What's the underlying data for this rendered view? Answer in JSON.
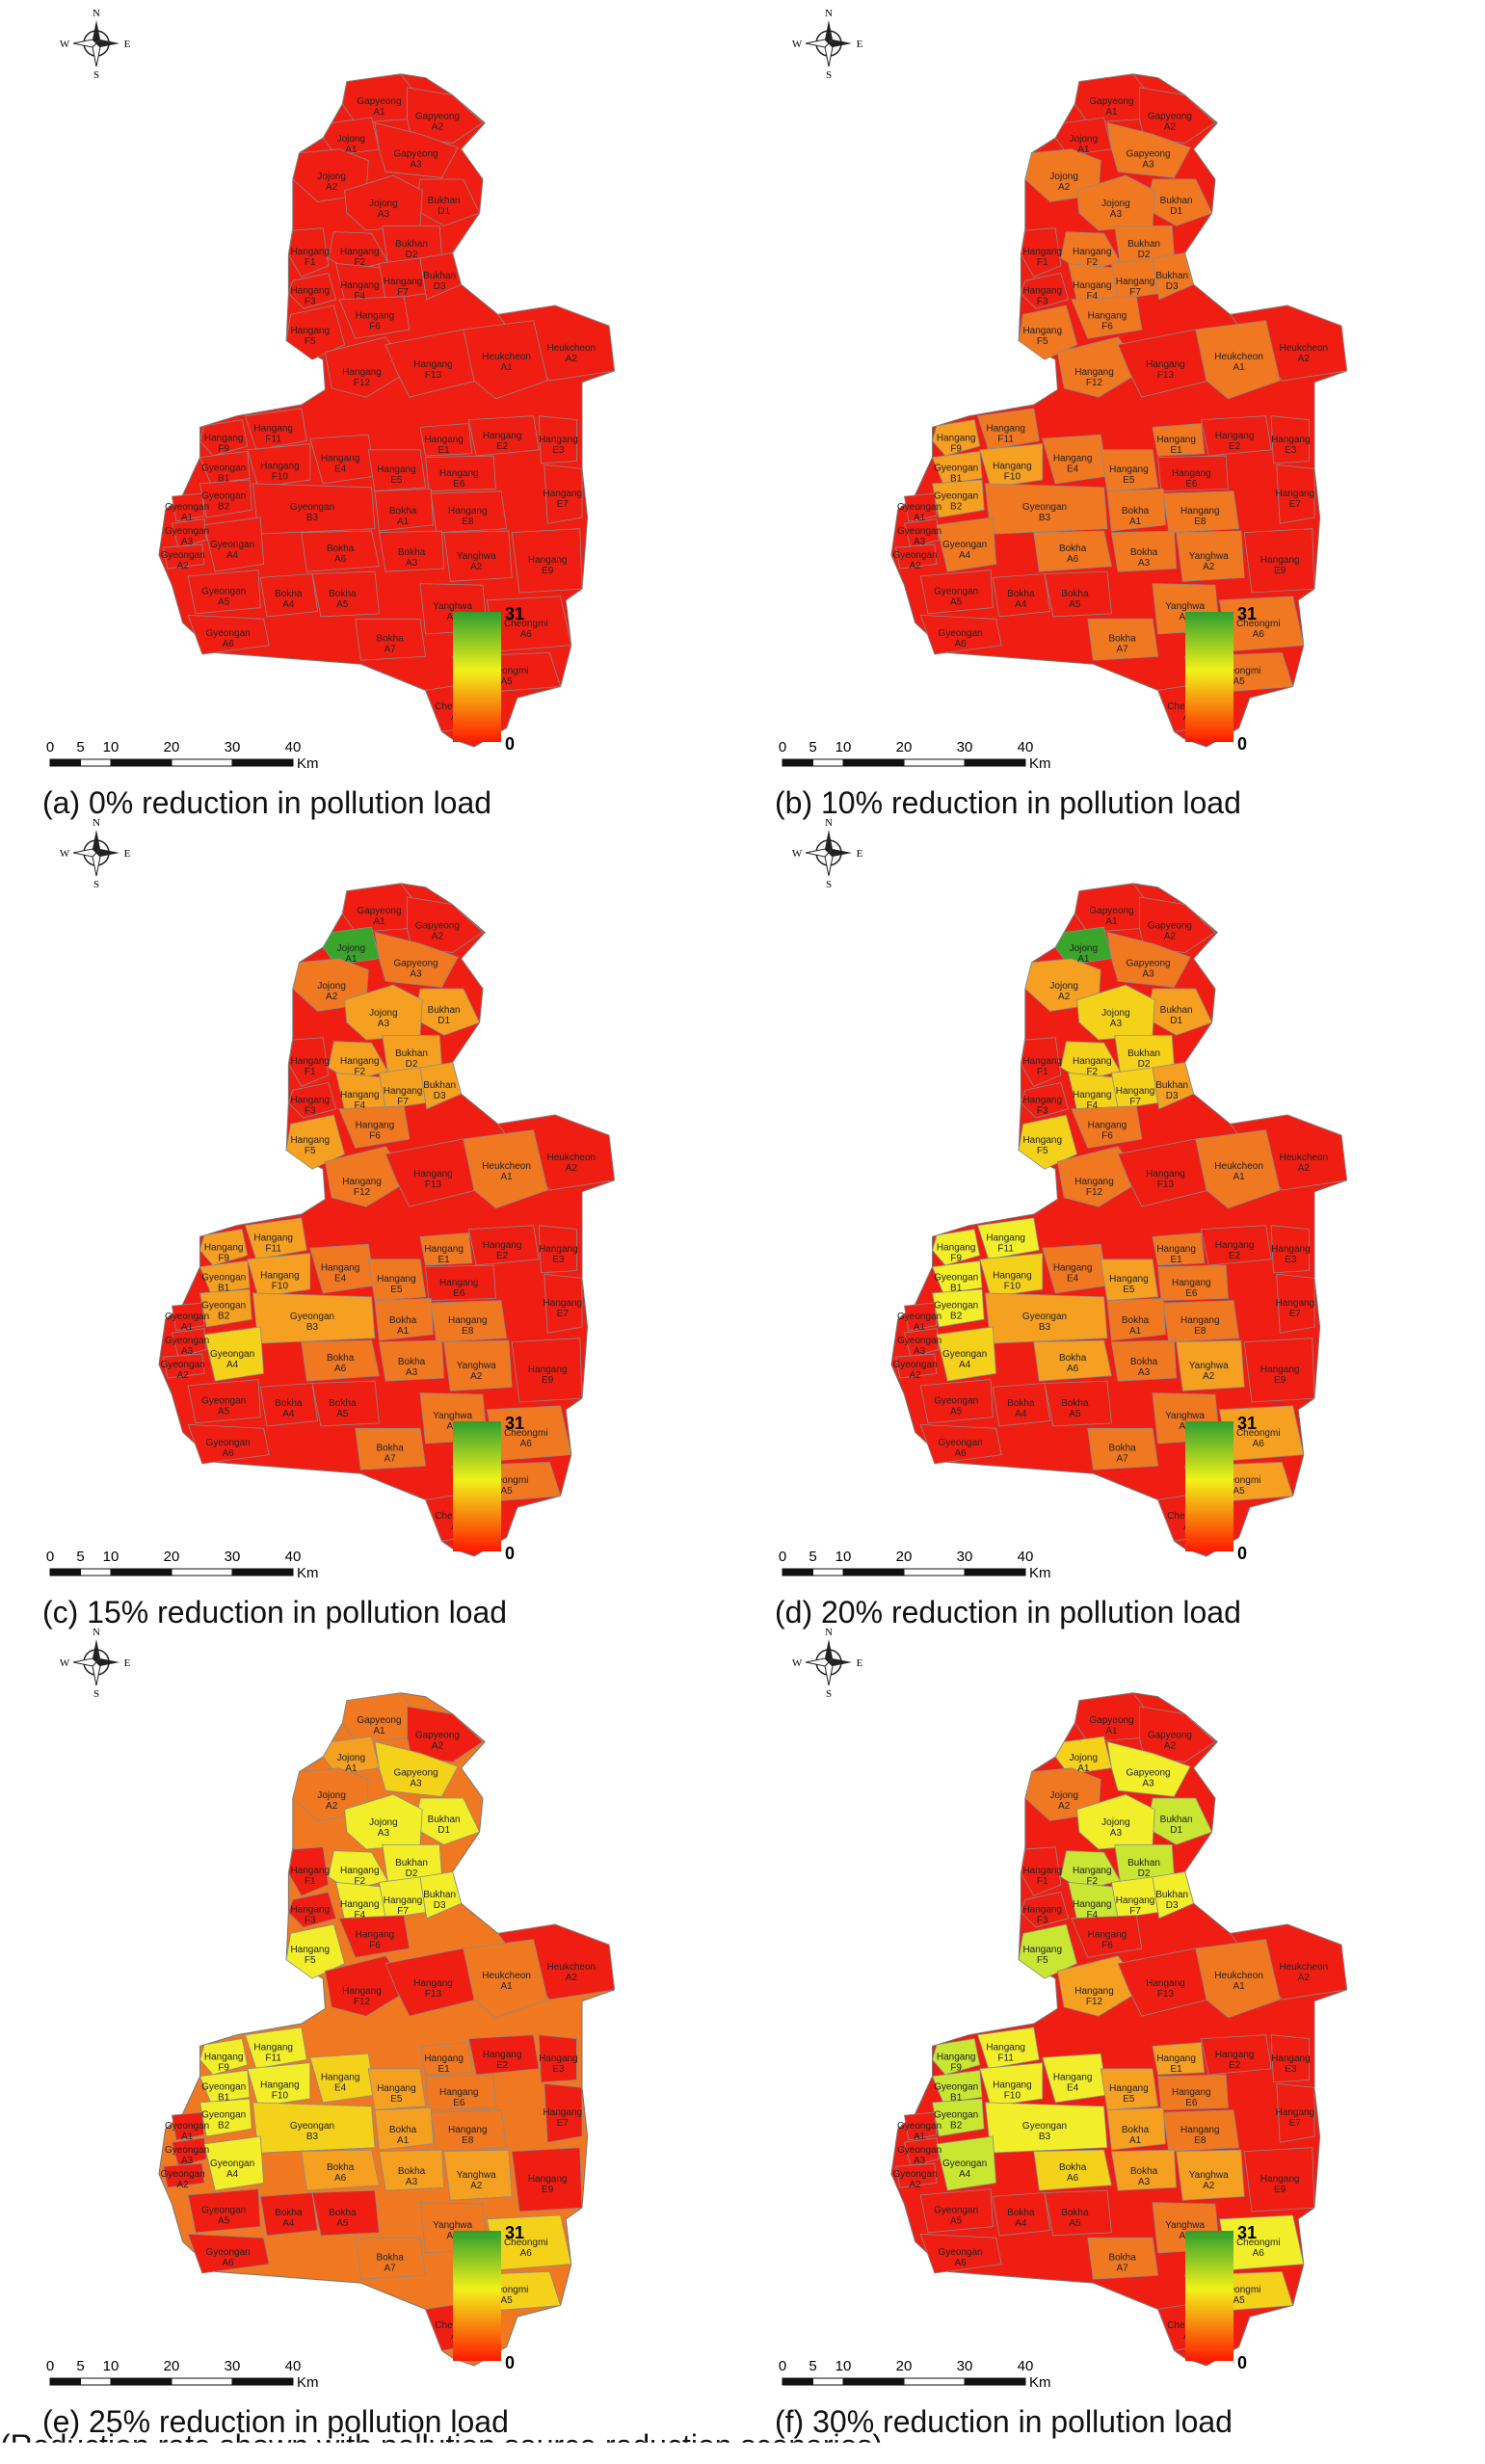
{
  "compass": {
    "n": "N",
    "s": "S",
    "e": "E",
    "w": "W"
  },
  "scale": {
    "ticks": [
      "0",
      "5",
      "10",
      "20",
      "30",
      "40"
    ],
    "unit": "Km"
  },
  "legend": {
    "max": "31",
    "min": "0",
    "colors": [
      "#2e9e2e",
      "#f2f21a",
      "#ff1a00"
    ]
  },
  "palette": {
    "red": "#f01e12",
    "orange": "#f07820",
    "ltorange": "#f5a020",
    "yellow": "#f5d21a",
    "ltyellow": "#f2ef2a",
    "yellowgreen": "#c8e632",
    "green": "#3aa52a"
  },
  "region_labels": [
    "Gapyeong A1",
    "Gapyeong A2",
    "Jojong A1",
    "Gapyeong A3",
    "Jojong A2",
    "Bukhan D1",
    "Jojong A3",
    "Hangang F1",
    "Hangang F2",
    "Bukhan D2",
    "Hangang F3",
    "Hangang F4",
    "Hangang F7",
    "Bukhan D3",
    "Hangang F5",
    "Hangang F6",
    "Heukcheon A2",
    "Hangang F12",
    "Hangang F13",
    "Heukcheon A1",
    "Hangang F9",
    "Hangang F11",
    "Gyeongan B1",
    "Hangang F10",
    "Hangang E4",
    "Hangang E1",
    "Hangang E2",
    "Hangang E3",
    "Gyeongan B2",
    "Hangang E5",
    "Hangang E6",
    "Gyeongan A1",
    "Gyeongan B3",
    "Bokha A1",
    "Hangang E7",
    "Gyeongan A3",
    "Hangang E8",
    "Gyeongan A2",
    "Bokha A6",
    "Bokha A3",
    "Gyeongan A4",
    "Yanghwa A2",
    "Gyeongan A5",
    "Bokha A4",
    "Bokha A5",
    "Hangang E9",
    "Gyeongan A6",
    "Yanghwa A1",
    "Bokha A7",
    "Cheongmi A6",
    "Cheongmi A5",
    "Cheongmi A4"
  ],
  "panels": [
    {
      "caption": "(a)  0%  reduction  in  pollution  load",
      "colors": [
        "red",
        "red",
        "red",
        "red",
        "red",
        "red",
        "red",
        "red",
        "red",
        "red",
        "red",
        "red",
        "red",
        "red",
        "red",
        "red",
        "red",
        "red",
        "red",
        "red",
        "red",
        "red",
        "red",
        "red",
        "red",
        "red",
        "red",
        "red",
        "red",
        "red",
        "red",
        "red",
        "red",
        "red",
        "red",
        "red",
        "red",
        "red",
        "red",
        "red",
        "red",
        "red",
        "red",
        "red",
        "red",
        "red",
        "red",
        "red",
        "red",
        "red",
        "red",
        "red"
      ]
    },
    {
      "caption": "(b)  10%  reduction  in  pollution  load",
      "colors": [
        "red",
        "red",
        "red",
        "orange",
        "orange",
        "orange",
        "orange",
        "red",
        "orange",
        "orange",
        "red",
        "orange",
        "orange",
        "orange",
        "orange",
        "orange",
        "red",
        "orange",
        "red",
        "orange",
        "ltorange",
        "orange",
        "ltorange",
        "ltorange",
        "orange",
        "orange",
        "red",
        "red",
        "ltorange",
        "orange",
        "red",
        "red",
        "orange",
        "orange",
        "red",
        "red",
        "orange",
        "red",
        "orange",
        "orange",
        "orange",
        "orange",
        "red",
        "red",
        "red",
        "red",
        "red",
        "orange",
        "orange",
        "orange",
        "orange",
        "red"
      ]
    },
    {
      "caption": "(c)  15%  reduction  in  pollution  load",
      "colors": [
        "red",
        "red",
        "green",
        "orange",
        "orange",
        "ltorange",
        "ltorange",
        "red",
        "ltorange",
        "ltorange",
        "red",
        "ltorange",
        "ltorange",
        "ltorange",
        "ltorange",
        "orange",
        "red",
        "orange",
        "red",
        "orange",
        "ltorange",
        "ltorange",
        "ltorange",
        "ltorange",
        "orange",
        "orange",
        "red",
        "red",
        "ltorange",
        "orange",
        "red",
        "red",
        "ltorange",
        "orange",
        "red",
        "red",
        "orange",
        "red",
        "orange",
        "orange",
        "yellow",
        "orange",
        "red",
        "red",
        "red",
        "red",
        "red",
        "orange",
        "orange",
        "orange",
        "orange",
        "red"
      ]
    },
    {
      "caption": "(d)  20%  reduction  in  pollution  load",
      "colors": [
        "red",
        "red",
        "green",
        "orange",
        "ltorange",
        "ltorange",
        "yellow",
        "red",
        "yellow",
        "yellow",
        "red",
        "yellow",
        "yellow",
        "ltorange",
        "yellow",
        "orange",
        "red",
        "orange",
        "red",
        "orange",
        "ltyellow",
        "ltyellow",
        "ltyellow",
        "yellow",
        "orange",
        "orange",
        "red",
        "red",
        "ltyellow",
        "ltorange",
        "orange",
        "red",
        "ltorange",
        "orange",
        "red",
        "red",
        "orange",
        "red",
        "ltorange",
        "orange",
        "yellow",
        "ltorange",
        "red",
        "red",
        "red",
        "red",
        "red",
        "orange",
        "orange",
        "ltorange",
        "ltorange",
        "red"
      ]
    },
    {
      "caption": "(e)  25%  reduction  in  pollution  load",
      "colors": [
        "orange",
        "red",
        "ltorange",
        "yellow",
        "orange",
        "ltyellow",
        "ltyellow",
        "red",
        "ltyellow",
        "ltyellow",
        "red",
        "ltyellow",
        "ltyellow",
        "ltyellow",
        "ltyellow",
        "red",
        "red",
        "red",
        "red",
        "orange",
        "ltyellow",
        "ltyellow",
        "ltyellow",
        "ltyellow",
        "yellow",
        "orange",
        "red",
        "red",
        "ltyellow",
        "ltorange",
        "orange",
        "red",
        "yellow",
        "ltorange",
        "red",
        "red",
        "orange",
        "red",
        "ltorange",
        "ltorange",
        "ltyellow",
        "ltorange",
        "red",
        "red",
        "red",
        "red",
        "red",
        "orange",
        "orange",
        "yellow",
        "yellow",
        "red"
      ]
    },
    {
      "caption": "(f)  30%  reduction  in  pollution  load",
      "colors": [
        "red",
        "red",
        "yellow",
        "ltyellow",
        "orange",
        "yellowgreen",
        "ltyellow",
        "red",
        "yellowgreen",
        "yellowgreen",
        "red",
        "yellowgreen",
        "ltyellow",
        "ltyellow",
        "yellowgreen",
        "red",
        "red",
        "ltorange",
        "red",
        "orange",
        "yellowgreen",
        "ltyellow",
        "yellowgreen",
        "ltyellow",
        "ltyellow",
        "ltorange",
        "red",
        "red",
        "yellowgreen",
        "ltorange",
        "orange",
        "red",
        "ltyellow",
        "ltorange",
        "red",
        "red",
        "orange",
        "red",
        "yellow",
        "ltorange",
        "yellowgreen",
        "ltorange",
        "red",
        "red",
        "red",
        "red",
        "red",
        "orange",
        "orange",
        "ltyellow",
        "yellow",
        "red"
      ]
    }
  ],
  "footer": "(Reduction rate shown with pollution source reduction scenarios)"
}
